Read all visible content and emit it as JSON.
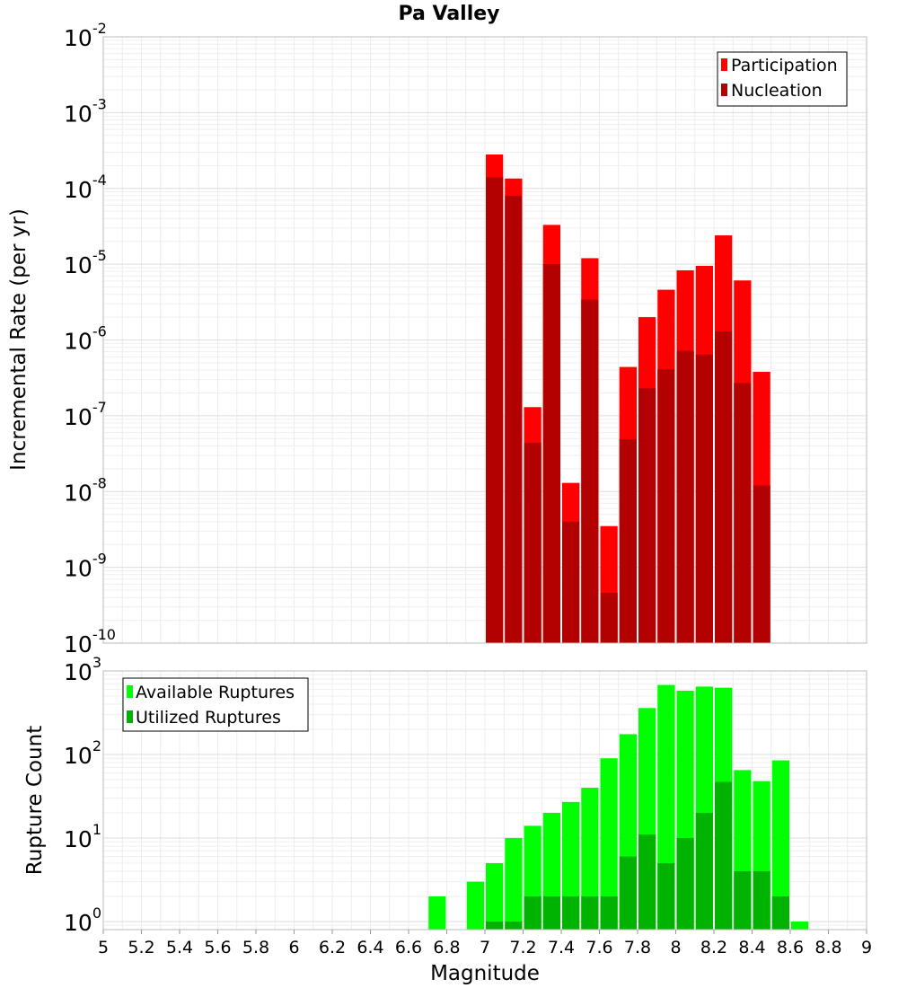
{
  "chart_data": [
    {
      "type": "bar",
      "title": "Pa Valley",
      "ylabel": "Incremental Rate (per yr)",
      "xlabel": "",
      "xlim": [
        5,
        9
      ],
      "ylim": [
        1e-10,
        0.01
      ],
      "yscale": "log",
      "grid": true,
      "legend": "top-right",
      "bin_width": 0.1,
      "x": [
        7.05,
        7.15,
        7.25,
        7.35,
        7.45,
        7.55,
        7.65,
        7.75,
        7.85,
        7.95,
        8.05,
        8.15,
        8.25,
        8.35,
        8.45
      ],
      "y_ticks": [
        {
          "base": "10",
          "exp": "-10",
          "value": 1e-10
        },
        {
          "base": "10",
          "exp": "-9",
          "value": 1e-09
        },
        {
          "base": "10",
          "exp": "-8",
          "value": 1e-08
        },
        {
          "base": "10",
          "exp": "-7",
          "value": 1e-07
        },
        {
          "base": "10",
          "exp": "-6",
          "value": 1e-06
        },
        {
          "base": "10",
          "exp": "-5",
          "value": 1e-05
        },
        {
          "base": "10",
          "exp": "-4",
          "value": 0.0001
        },
        {
          "base": "10",
          "exp": "-3",
          "value": 0.001
        },
        {
          "base": "10",
          "exp": "-2",
          "value": 0.01
        }
      ],
      "series": [
        {
          "name": "Participation",
          "color": "#ff0000",
          "values": [
            0.00028,
            0.000135,
            1.3e-07,
            3.3e-05,
            1.3e-08,
            1.2e-05,
            3.5e-09,
            4.4e-07,
            2e-06,
            4.6e-06,
            8.3e-06,
            9.5e-06,
            2.4e-05,
            6.1e-06,
            3.8e-07
          ]
        },
        {
          "name": "Nucleation",
          "color": "#b30000",
          "values": [
            0.00014,
            8e-05,
            4.4e-08,
            1e-05,
            4e-09,
            3.4e-06,
            4.6e-10,
            4.9e-08,
            2.3e-07,
            4.1e-07,
            7.2e-07,
            6.4e-07,
            1.3e-06,
            2.7e-07,
            1.2e-08
          ]
        }
      ]
    },
    {
      "type": "bar",
      "title": "",
      "ylabel": "Rupture Count",
      "xlabel": "Magnitude",
      "xlim": [
        5,
        9
      ],
      "ylim": [
        0.8,
        1000
      ],
      "yscale": "log",
      "grid": true,
      "legend": "top-left",
      "bin_width": 0.1,
      "x": [
        6.75,
        6.95,
        7.05,
        7.15,
        7.25,
        7.35,
        7.45,
        7.55,
        7.65,
        7.75,
        7.85,
        7.95,
        8.05,
        8.15,
        8.25,
        8.35,
        8.45,
        8.55,
        8.65
      ],
      "x_ticks": [
        "5",
        "5.2",
        "5.4",
        "5.6",
        "5.8",
        "6",
        "6.2",
        "6.4",
        "6.6",
        "6.8",
        "7",
        "7.2",
        "7.4",
        "7.6",
        "7.8",
        "8",
        "8.2",
        "8.4",
        "8.6",
        "8.8",
        "9"
      ],
      "y_ticks": [
        {
          "base": "10",
          "exp": "0",
          "value": 1
        },
        {
          "base": "10",
          "exp": "1",
          "value": 10
        },
        {
          "base": "10",
          "exp": "2",
          "value": 100
        },
        {
          "base": "10",
          "exp": "3",
          "value": 1000
        }
      ],
      "series": [
        {
          "name": "Available Ruptures",
          "color": "#00ff00",
          "values": [
            2,
            3,
            5,
            10,
            14,
            20,
            27,
            40,
            90,
            175,
            360,
            680,
            580,
            650,
            630,
            65,
            48,
            85,
            1
          ]
        },
        {
          "name": "Utilized Ruptures",
          "color": "#00b300",
          "values": [
            0,
            0,
            1,
            1,
            2,
            2,
            2,
            2,
            2,
            6,
            11,
            5,
            10,
            20,
            47,
            4,
            4,
            2,
            0
          ]
        }
      ]
    }
  ]
}
